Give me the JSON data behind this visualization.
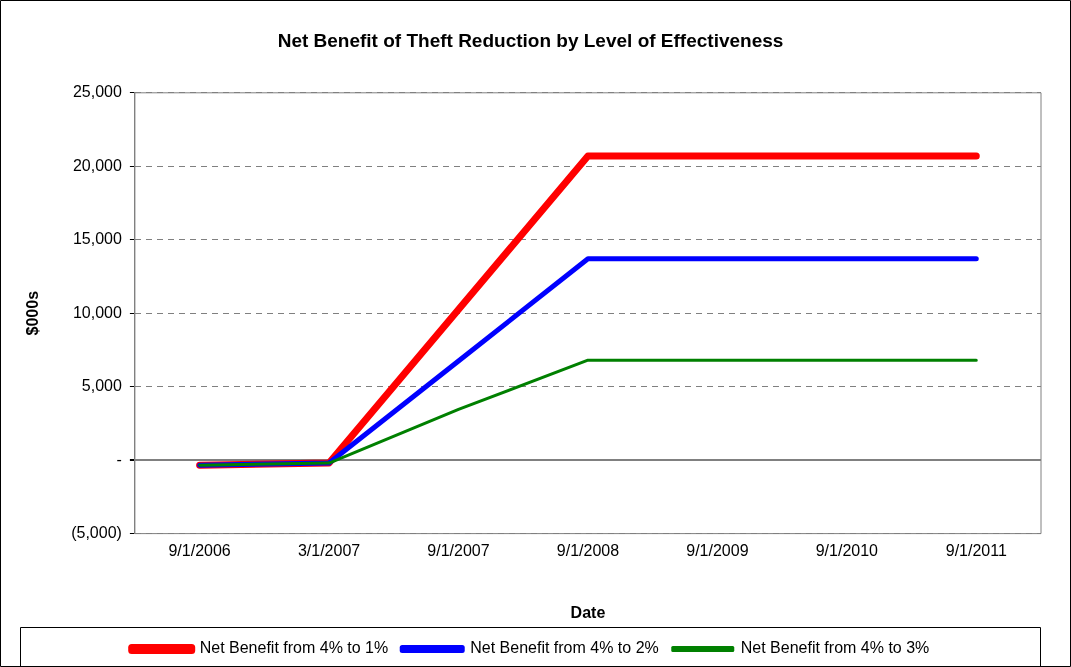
{
  "chart_data": {
    "type": "line",
    "title": "Net Benefit of Theft Reduction by Level of Effectiveness",
    "xlabel": "Date",
    "ylabel": "$000s",
    "categories": [
      "9/1/2006",
      "3/1/2007",
      "9/1/2007",
      "9/1/2008",
      "9/1/2009",
      "9/1/2010",
      "9/1/2011"
    ],
    "series": [
      {
        "name": "Net Benefit from 4% to 1%",
        "color": "#ff0000",
        "values": [
          -350,
          -200,
          10250,
          20700,
          20700,
          20700,
          20700
        ]
      },
      {
        "name": "Net Benefit from 4% to 2%",
        "color": "#0000ff",
        "values": [
          -350,
          -200,
          6750,
          13700,
          13700,
          13700,
          13700
        ]
      },
      {
        "name": "Net Benefit from 4% to 3%",
        "color": "#008000",
        "values": [
          -350,
          -200,
          3450,
          6800,
          6800,
          6800,
          6800
        ]
      }
    ],
    "ylim": [
      -5000,
      25000
    ],
    "yticks": [
      {
        "value": -5000,
        "label": "(5,000)"
      },
      {
        "value": 0,
        "label": "-"
      },
      {
        "value": 5000,
        "label": "5,000"
      },
      {
        "value": 10000,
        "label": "10,000"
      },
      {
        "value": 15000,
        "label": "15,000"
      },
      {
        "value": 20000,
        "label": "20,000"
      },
      {
        "value": 25000,
        "label": "25,000"
      }
    ],
    "grid": "y",
    "legend": "bottom",
    "marker": "none",
    "line_style": "solid"
  }
}
